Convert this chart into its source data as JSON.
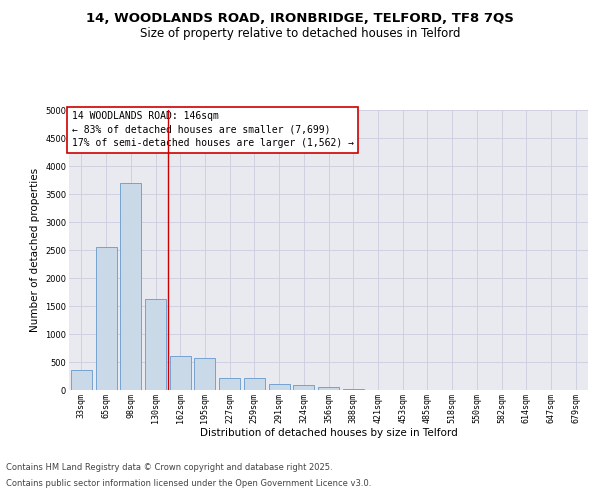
{
  "title_line1": "14, WOODLANDS ROAD, IRONBRIDGE, TELFORD, TF8 7QS",
  "title_line2": "Size of property relative to detached houses in Telford",
  "xlabel": "Distribution of detached houses by size in Telford",
  "ylabel": "Number of detached properties",
  "categories": [
    "33sqm",
    "65sqm",
    "98sqm",
    "130sqm",
    "162sqm",
    "195sqm",
    "227sqm",
    "259sqm",
    "291sqm",
    "324sqm",
    "356sqm",
    "388sqm",
    "421sqm",
    "453sqm",
    "485sqm",
    "518sqm",
    "550sqm",
    "582sqm",
    "614sqm",
    "647sqm",
    "679sqm"
  ],
  "values": [
    350,
    2550,
    3700,
    1620,
    600,
    570,
    220,
    220,
    110,
    90,
    50,
    15,
    5,
    3,
    2,
    1,
    1,
    0,
    0,
    0,
    0
  ],
  "bar_color": "#c9d9e8",
  "bar_edge_color": "#6699cc",
  "grid_color": "#ccccdd",
  "background_color": "#e8eaf0",
  "annotation_box_color": "#ffffff",
  "annotation_border_color": "#cc0000",
  "vline_color": "#cc0000",
  "vline_x_index": 3.5,
  "property_size": 146,
  "property_name": "14 WOODLANDS ROAD",
  "pct_smaller": 83,
  "num_smaller": "7,699",
  "pct_larger": 17,
  "num_larger": "1,562",
  "ylim": [
    0,
    5000
  ],
  "yticks": [
    0,
    500,
    1000,
    1500,
    2000,
    2500,
    3000,
    3500,
    4000,
    4500,
    5000
  ],
  "footer_line1": "Contains HM Land Registry data © Crown copyright and database right 2025.",
  "footer_line2": "Contains public sector information licensed under the Open Government Licence v3.0.",
  "title_fontsize": 9.5,
  "subtitle_fontsize": 8.5,
  "tick_fontsize": 6,
  "axis_label_fontsize": 7.5,
  "annotation_fontsize": 7,
  "footer_fontsize": 6
}
